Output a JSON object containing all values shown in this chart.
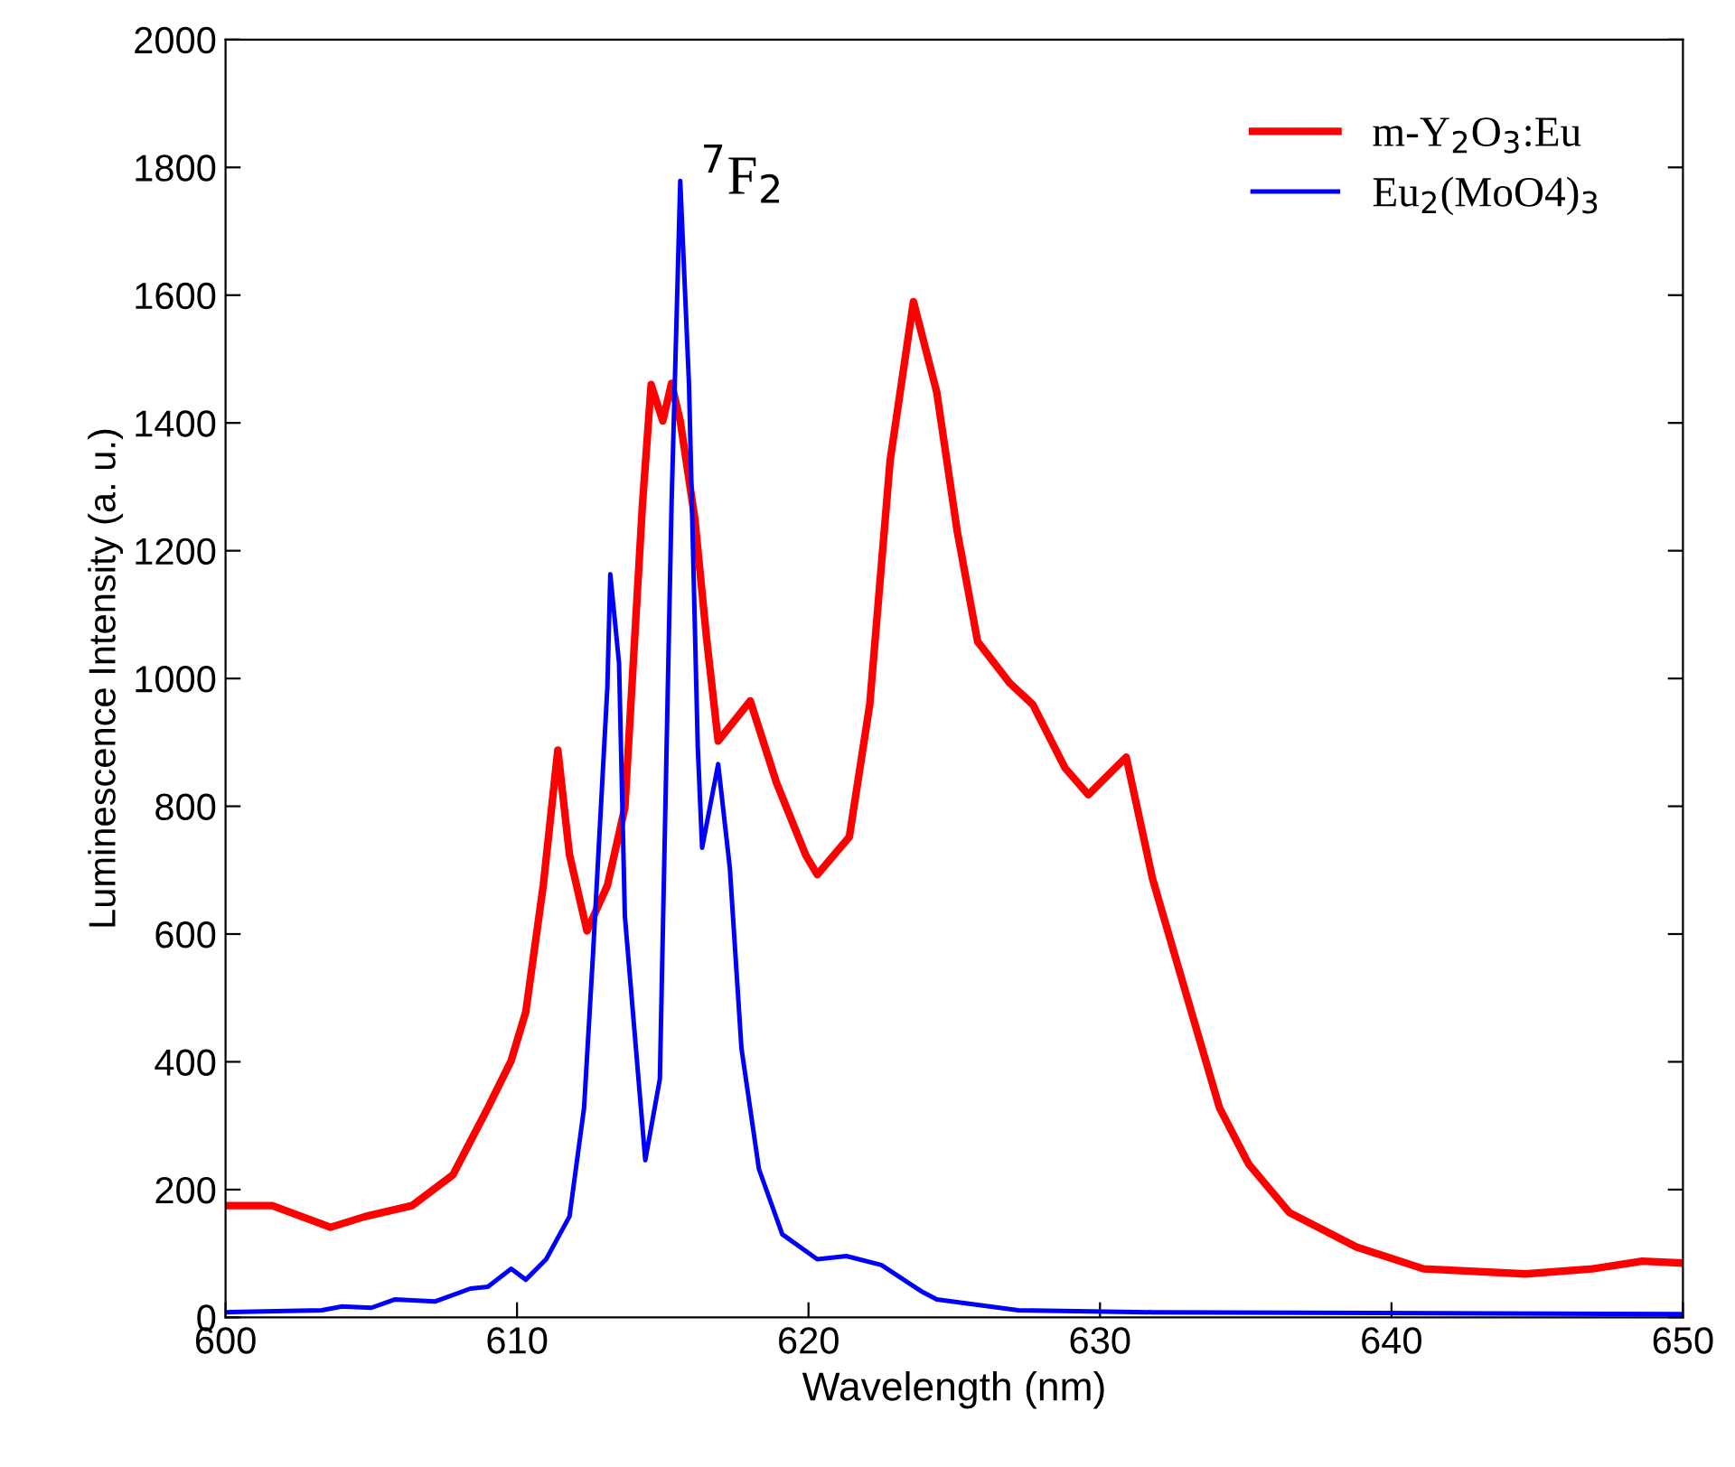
{
  "chart_data": {
    "type": "line",
    "xlabel": "Wavelength (nm)",
    "ylabel": "Luminescence Intensity (a. u.)",
    "xlim": [
      600,
      650
    ],
    "xticks": [
      600,
      610,
      620,
      630,
      640,
      650
    ],
    "ylim": [
      0,
      2000
    ],
    "yticks": [
      0,
      200,
      400,
      600,
      800,
      1000,
      1200,
      1400,
      1600,
      1800,
      2000
    ],
    "grid": false,
    "legend": "top right",
    "marker": "none",
    "line_style": "solid",
    "annotations": [
      {
        "text": "$^{7}$F$_{2}$",
        "x": 615.6,
        "y": 1779
      }
    ],
    "series": [
      {
        "name": "m-Y$_{2}$O$_{3}$:Eu",
        "color": "#ff0000",
        "x": [
          600,
          601.6,
          603.6,
          604.8,
          606.4,
          607.8,
          609.0,
          609.8,
          610.3,
          610.9,
          611.4,
          611.8,
          612.4,
          613.1,
          613.7,
          614.3,
          614.6,
          615.0,
          615.3,
          615.6,
          616.1,
          616.5,
          616.9,
          618.0,
          618.9,
          619.9,
          620.3,
          621.4,
          622.1,
          622.8,
          623.6,
          624.4,
          625.1,
          625.8,
          626.9,
          627.7,
          628.8,
          629.6,
          630.9,
          631.8,
          632.7,
          634.1,
          635.1,
          636.5,
          638.8,
          641.1,
          644.6,
          646.9,
          648.6,
          650
        ],
        "values": [
          175,
          175,
          141,
          158,
          175,
          223,
          328,
          402,
          478,
          676,
          888,
          724,
          605,
          676,
          798,
          1270,
          1460,
          1403,
          1462,
          1403,
          1250,
          1064,
          902,
          965,
          837,
          724,
          693,
          752,
          959,
          1341,
          1590,
          1448,
          1231,
          1058,
          993,
          959,
          860,
          818,
          877,
          687,
          546,
          328,
          240,
          164,
          110,
          76,
          68,
          76,
          88,
          85
        ]
      },
      {
        "name": "Eu$_{2}$(MoO4)$_{3}$",
        "color": "#0000ff",
        "x": [
          600,
          603.3,
          604.0,
          605.0,
          605.8,
          607.2,
          608.4,
          609.0,
          609.8,
          610.3,
          611.0,
          611.8,
          612.3,
          612.6,
          613.1,
          613.2,
          613.5,
          613.7,
          614.4,
          614.9,
          615.3,
          615.6,
          615.9,
          616.2,
          616.35,
          616.9,
          617.3,
          617.7,
          618.3,
          619.1,
          620.3,
          621.3,
          622.5,
          623.9,
          624.4,
          627.2,
          631.8,
          650
        ],
        "values": [
          8,
          11,
          17,
          15,
          28,
          25,
          45,
          48,
          76,
          59,
          91,
          158,
          328,
          563,
          987,
          1163,
          1024,
          628,
          246,
          373,
          1270,
          1779,
          1460,
          894,
          735,
          866,
          704,
          421,
          232,
          130,
          91,
          96,
          82,
          40,
          28,
          11,
          8,
          5
        ]
      }
    ]
  }
}
